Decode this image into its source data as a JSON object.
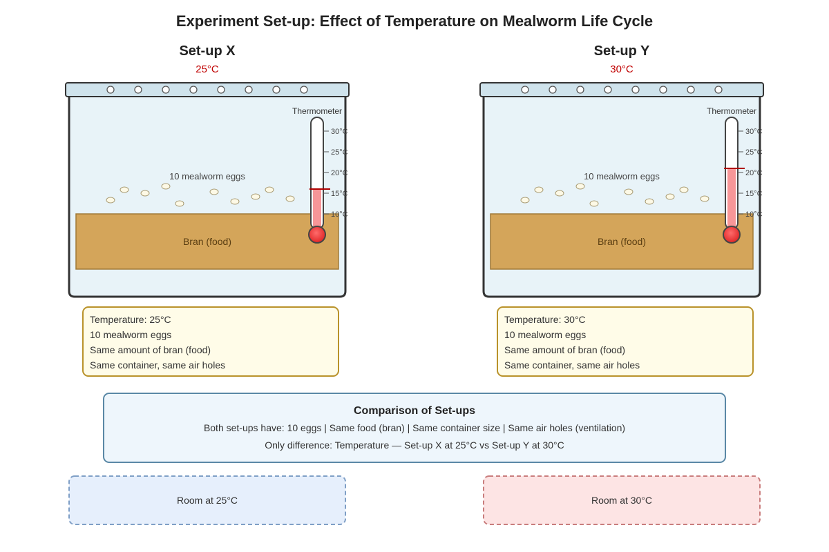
{
  "title": "Experiment Set-up: Effect of Temperature on Mealworm Life Cycle",
  "colors": {
    "container_fill": "#e8f3f8",
    "container_stroke": "#333333",
    "lid_fill": "#cfe3ec",
    "bran_fill": "#d4a55a",
    "bran_stroke": "#a07a38",
    "egg_fill": "#fdf9e6",
    "egg_stroke": "#a89b74",
    "mercury": "#f79698",
    "bulb": "#ee3b3b",
    "temp_red": "#c00000",
    "info_fill": "#fffce8",
    "info_stroke": "#b9922a",
    "comparison_fill": "#eef6fc",
    "comparison_stroke": "#5a88a6",
    "room_x_fill": "#e6effc",
    "room_x_stroke": "#7f9fc6",
    "room_y_fill": "#fde4e4",
    "room_y_stroke": "#c97d7d"
  },
  "setups": [
    {
      "heading": "Set-up X",
      "temperature": "25°C",
      "eggs_label": "10 mealworm eggs",
      "bran_label": "Bran (food)",
      "thermometer_label": "Thermometer",
      "thermometer_reading": 16,
      "scale": [
        "30°C",
        "25°C",
        "20°C",
        "15°C",
        "10°C"
      ],
      "info": [
        "Temperature: 25°C",
        "10 mealworm eggs",
        "Same amount of bran (food)",
        "Same container, same air holes"
      ],
      "room_label": "Room at 25°C"
    },
    {
      "heading": "Set-up Y",
      "temperature": "30°C",
      "eggs_label": "10 mealworm eggs",
      "bran_label": "Bran (food)",
      "thermometer_label": "Thermometer",
      "thermometer_reading": 21,
      "scale": [
        "30°C",
        "25°C",
        "20°C",
        "15°C",
        "10°C"
      ],
      "info": [
        "Temperature: 30°C",
        "10 mealworm eggs",
        "Same amount of bran (food)",
        "Same container, same air holes"
      ],
      "room_label": "Room at 30°C"
    }
  ],
  "comparison": {
    "title": "Comparison of Set-ups",
    "line1": "Both set-ups have: 10 eggs | Same food (bran) | Same container size | Same air holes (ventilation)",
    "line2": "Only difference: Temperature — Set-up X at 25°C vs Set-up Y at 30°C"
  }
}
